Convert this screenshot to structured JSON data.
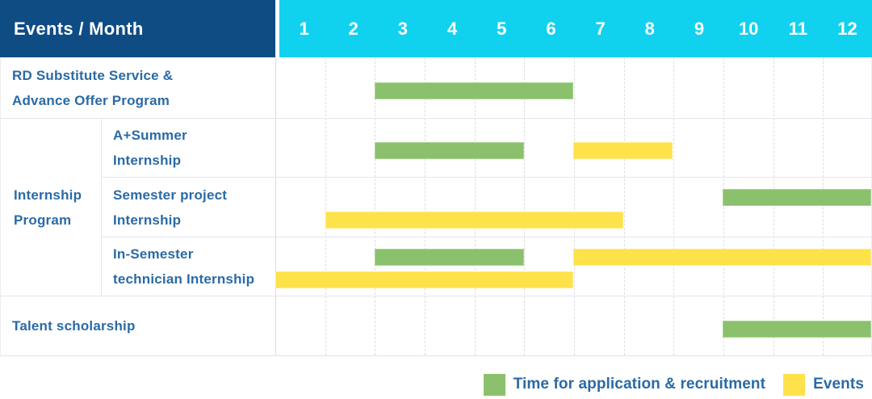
{
  "header": {
    "title": "Events / Month",
    "months": [
      "1",
      "2",
      "3",
      "4",
      "5",
      "6",
      "7",
      "8",
      "9",
      "10",
      "11",
      "12"
    ]
  },
  "group_label_lines": [
    "Internship",
    "Program"
  ],
  "chart_data": {
    "type": "table",
    "subtype": "gantt-timeline",
    "title": "Events / Month",
    "x_label": "Month",
    "x_categories": [
      "1",
      "2",
      "3",
      "4",
      "5",
      "6",
      "7",
      "8",
      "9",
      "10",
      "11",
      "12"
    ],
    "x_range": [
      1,
      12
    ],
    "grid": true,
    "rows": [
      {
        "id": "rd-substitute-service",
        "label_lines": [
          "RD Substitute Service &",
          "Advance Offer Program"
        ],
        "group": null,
        "bars": [
          {
            "color": "green",
            "start_month": 3,
            "end_month": 6,
            "lane": "center"
          }
        ]
      },
      {
        "id": "a-plus-summer-internship",
        "label_lines": [
          "A+Summer",
          "Internship"
        ],
        "group": "Internship Program",
        "bars": [
          {
            "color": "green",
            "start_month": 3,
            "end_month": 5,
            "lane": "center"
          },
          {
            "color": "yellow",
            "start_month": 7,
            "end_month": 8,
            "lane": "center"
          }
        ]
      },
      {
        "id": "semester-project-internship",
        "label_lines": [
          "Semester project",
          "Internship"
        ],
        "group": "Internship Program",
        "bars": [
          {
            "color": "green",
            "start_month": 10,
            "end_month": 12,
            "lane": "top"
          },
          {
            "color": "yellow",
            "start_month": 2,
            "end_month": 7,
            "lane": "bottom"
          }
        ]
      },
      {
        "id": "in-semester-technician-internship",
        "label_lines": [
          "In-Semester",
          "technician Internship"
        ],
        "group": "Internship Program",
        "bars": [
          {
            "color": "green",
            "start_month": 3,
            "end_month": 5,
            "lane": "top"
          },
          {
            "color": "yellow",
            "start_month": 7,
            "end_month": 12,
            "lane": "top"
          },
          {
            "color": "yellow",
            "start_month": 1,
            "end_month": 6,
            "lane": "bottom"
          }
        ]
      },
      {
        "id": "talent-scholarship",
        "label_lines": [
          "Talent scholarship"
        ],
        "group": null,
        "bars": [
          {
            "color": "green",
            "start_month": 10,
            "end_month": 12,
            "lane": "center"
          }
        ]
      }
    ],
    "legend": [
      {
        "key": "green",
        "color": "#8bc16d",
        "label": "Time for application & recruitment"
      },
      {
        "key": "yellow",
        "color": "#fde24a",
        "label": "Events"
      }
    ],
    "legend_position": "bottom-right"
  },
  "colors": {
    "header_bg": "#0f4c84",
    "months_bg": "#11d2ee",
    "header_text": "#ffffff",
    "label_text": "#2a6aa6",
    "bar_green": "#8bc16d",
    "bar_yellow": "#fde24a",
    "gridline": "#dcdce2"
  }
}
